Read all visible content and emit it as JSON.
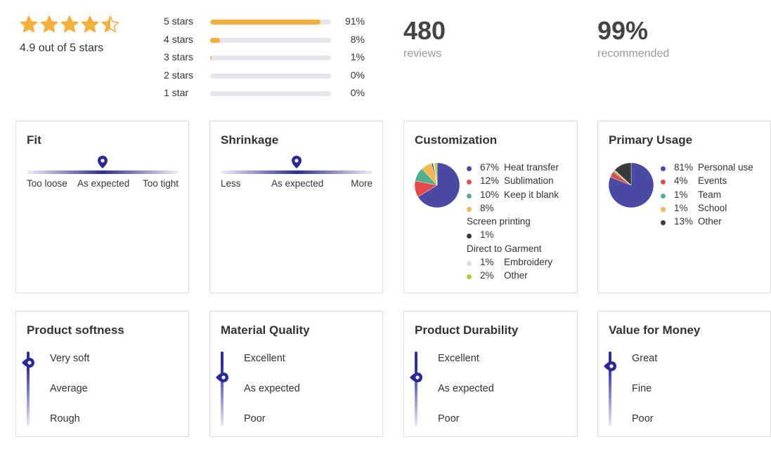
{
  "summary": {
    "average_text": "4.9 out of 5 stars",
    "average_rating": 4.9,
    "star_color": "#f3b03c",
    "histogram": [
      {
        "label": "5 stars",
        "pct": "91%",
        "fraction": 0.91
      },
      {
        "label": "4 stars",
        "pct": "8%",
        "fraction": 0.08
      },
      {
        "label": "3 stars",
        "pct": "1%",
        "fraction": 0.01
      },
      {
        "label": "2 stars",
        "pct": "0%",
        "fraction": 0
      },
      {
        "label": "1 star",
        "pct": "0%",
        "fraction": 0
      }
    ],
    "reviews": {
      "value": "480",
      "label": "reviews"
    },
    "recommended": {
      "value": "99%",
      "label": "recommended"
    }
  },
  "fit": {
    "title": "Fit",
    "level": 0.5,
    "labels": [
      "Too loose",
      "As expected",
      "Too tight"
    ]
  },
  "shrinkage": {
    "title": "Shrinkage",
    "level": 0.5,
    "labels": [
      "Less",
      "As expected",
      "More"
    ]
  },
  "customization": {
    "title": "Customization",
    "items": [
      {
        "pct": "67%",
        "name": "Heat transfer",
        "value": 67,
        "color": "#4a4aa3"
      },
      {
        "pct": "12%",
        "name": "Sublimation",
        "value": 12,
        "color": "#e44a4a"
      },
      {
        "pct": "10%",
        "name": "Keep it blank",
        "value": 10,
        "color": "#52b08f"
      },
      {
        "pct": "8%",
        "name": "Screen printing",
        "value": 8,
        "color": "#f5b751"
      },
      {
        "pct": "1%",
        "name": "Direct to Garment",
        "value": 1,
        "color": "#3a3a3a"
      },
      {
        "pct": "1%",
        "name": "Embroidery",
        "value": 1,
        "color": "#dddddd"
      },
      {
        "pct": "2%",
        "name": "Other",
        "value": 2,
        "color": "#a8d23a"
      }
    ]
  },
  "primary_usage": {
    "title": "Primary Usage",
    "items": [
      {
        "pct": "81%",
        "name": "Personal use",
        "value": 81,
        "color": "#4a4aa3"
      },
      {
        "pct": "4%",
        "name": "Events",
        "value": 4,
        "color": "#e44a4a"
      },
      {
        "pct": "1%",
        "name": "Team",
        "value": 1,
        "color": "#52b08f"
      },
      {
        "pct": "1%",
        "name": "School",
        "value": 1,
        "color": "#f5b751"
      },
      {
        "pct": "13%",
        "name": "Other",
        "value": 13,
        "color": "#3a3a3a"
      }
    ]
  },
  "softness": {
    "title": "Product softness",
    "labels": [
      "Very soft",
      "Average",
      "Rough"
    ],
    "level": 0.85
  },
  "material": {
    "title": "Material Quality",
    "labels": [
      "Excellent",
      "As expected",
      "Poor"
    ],
    "level": 0.65
  },
  "durability": {
    "title": "Product Durability",
    "labels": [
      "Excellent",
      "As expected",
      "Poor"
    ],
    "level": 0.65
  },
  "value": {
    "title": "Value for Money",
    "labels": [
      "Great",
      "Fine",
      "Poor"
    ],
    "level": 0.8
  },
  "accent_color": "#2a2a96"
}
